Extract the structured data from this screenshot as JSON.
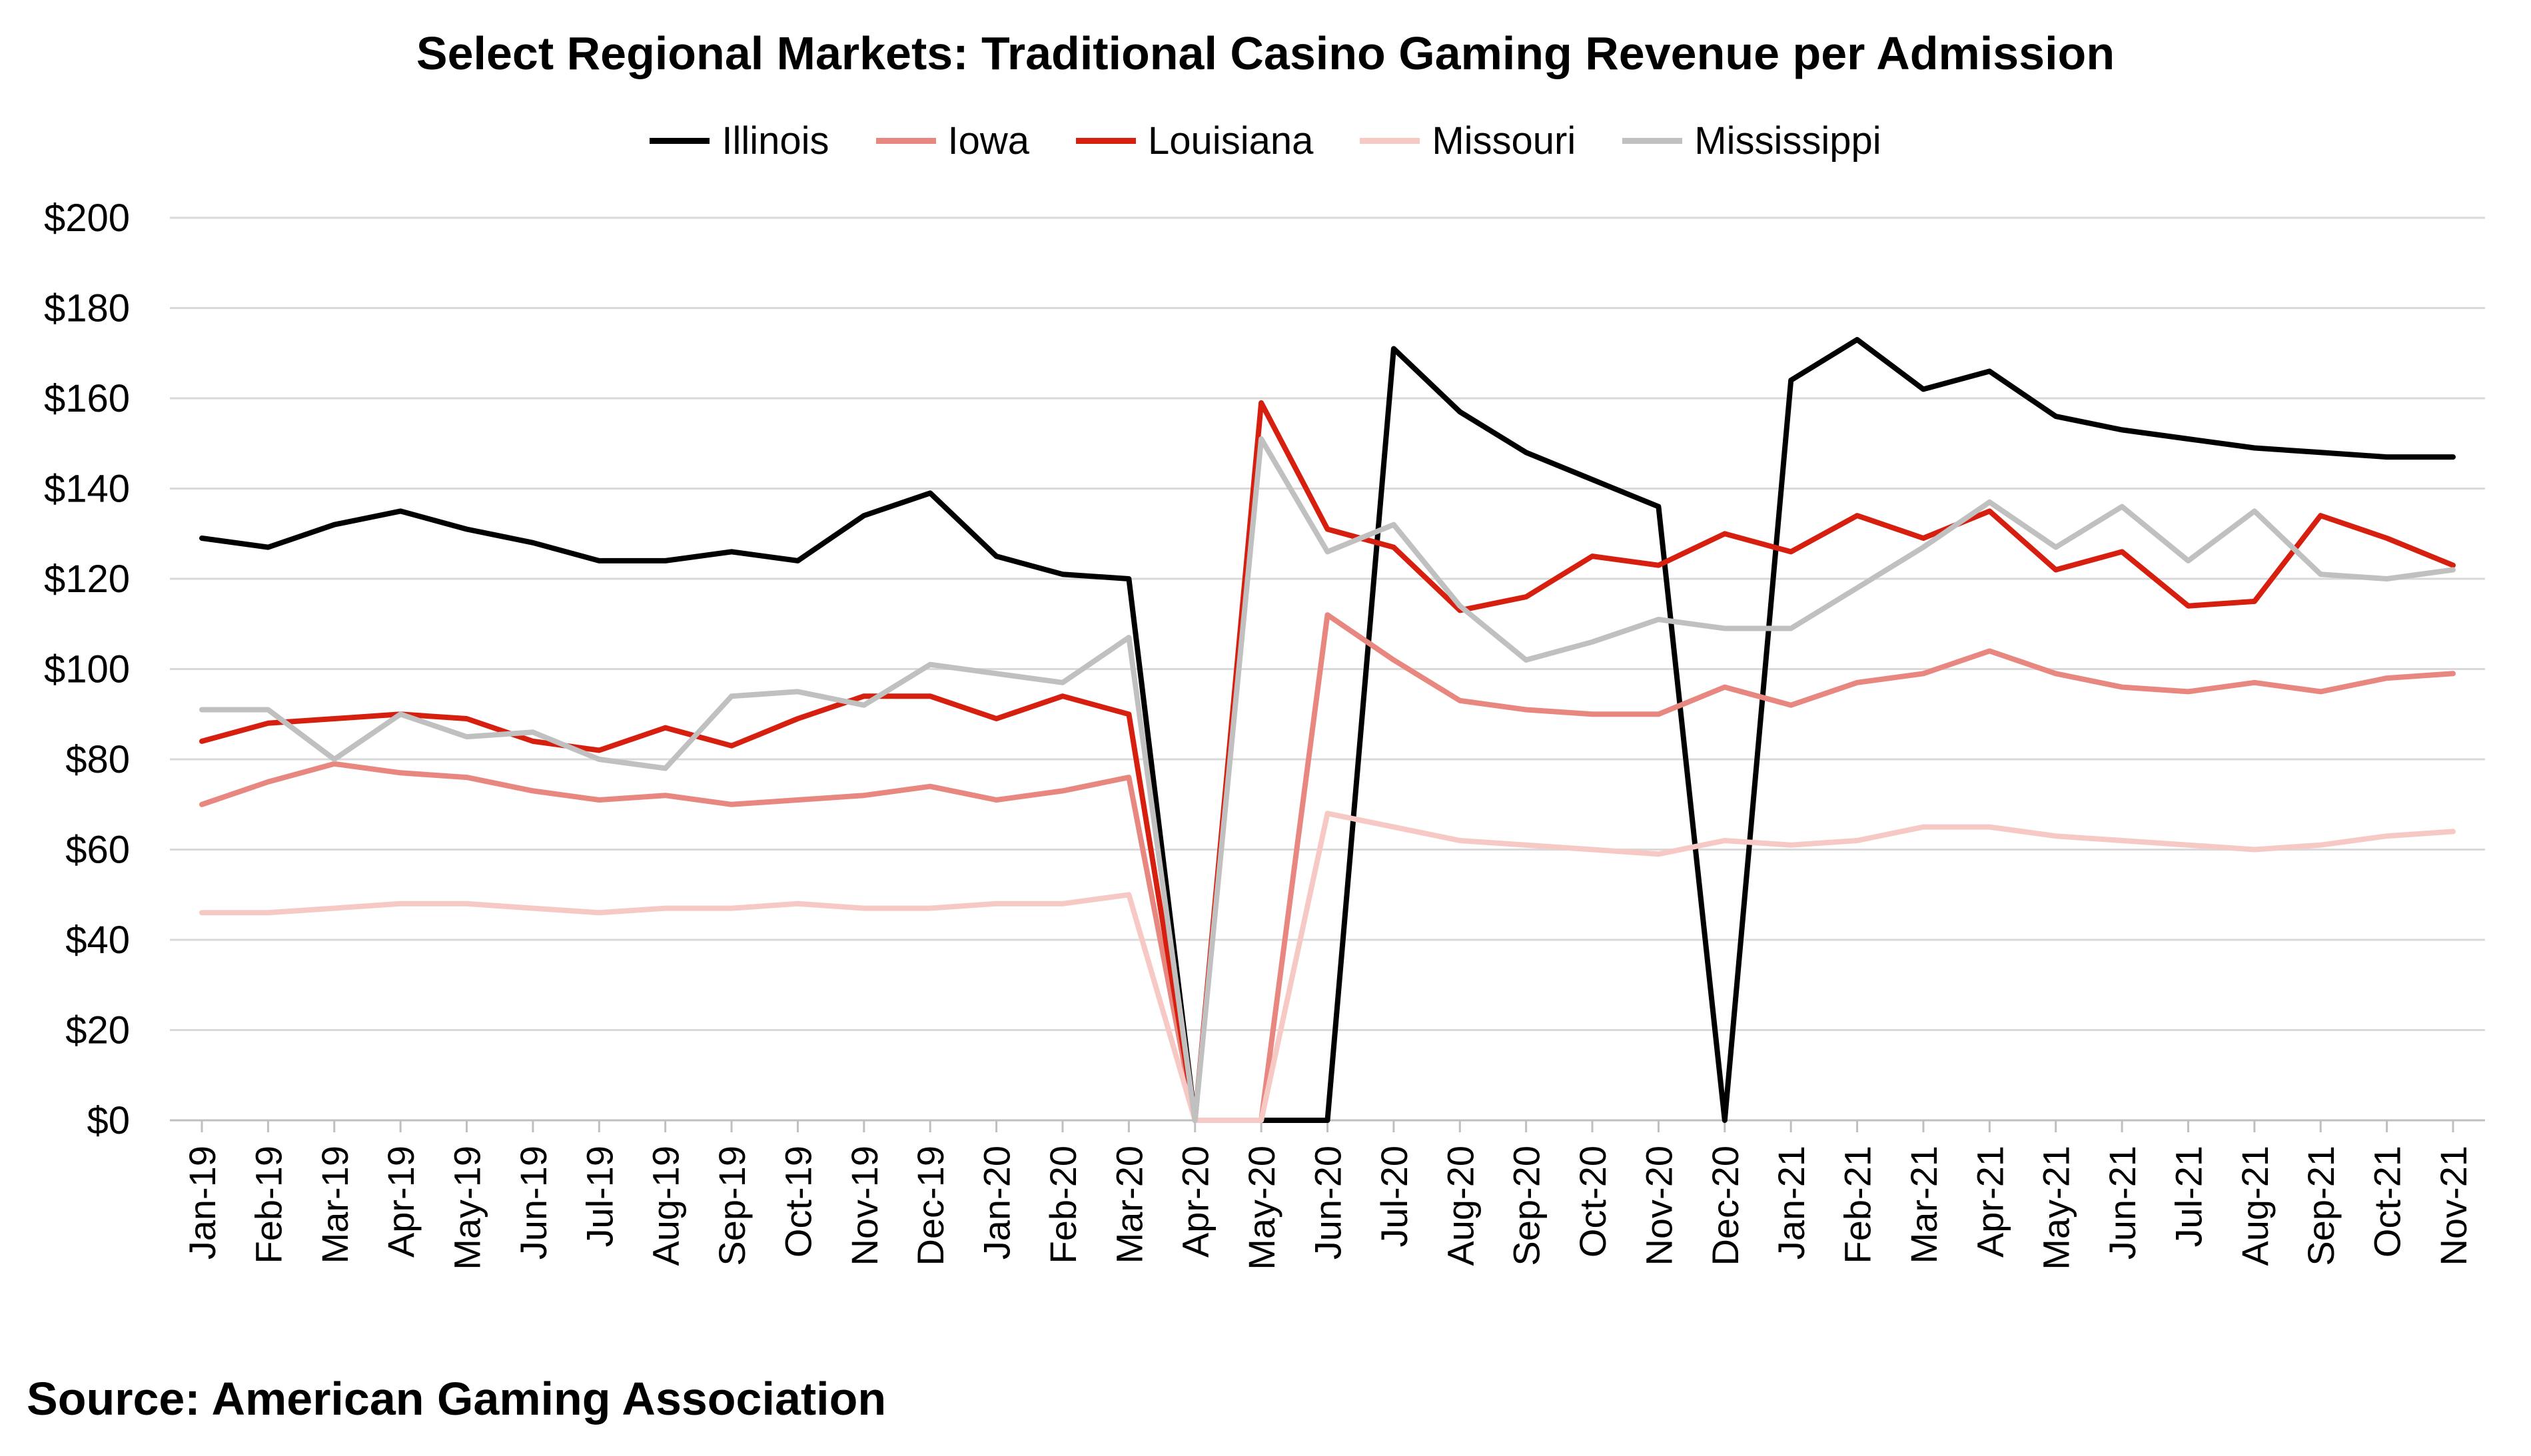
{
  "source": "Source: American Gaming Association",
  "chart_data": {
    "type": "line",
    "title": "Select Regional Markets: Traditional Casino Gaming Revenue per Admission",
    "legend_position": "top",
    "grid": true,
    "ylim": [
      0,
      200
    ],
    "y_ticks": [
      0,
      20,
      40,
      60,
      80,
      100,
      120,
      140,
      160,
      180,
      200
    ],
    "y_tick_labels": [
      "$0",
      "$20",
      "$40",
      "$60",
      "$80",
      "$100",
      "$120",
      "$140",
      "$160",
      "$180",
      "$200"
    ],
    "categories": [
      "Jan-19",
      "Feb-19",
      "Mar-19",
      "Apr-19",
      "May-19",
      "Jun-19",
      "Jul-19",
      "Aug-19",
      "Sep-19",
      "Oct-19",
      "Nov-19",
      "Dec-19",
      "Jan-20",
      "Feb-20",
      "Mar-20",
      "Apr-20",
      "May-20",
      "Jun-20",
      "Jul-20",
      "Aug-20",
      "Sep-20",
      "Oct-20",
      "Nov-20",
      "Dec-20",
      "Jan-21",
      "Feb-21",
      "Mar-21",
      "Apr-21",
      "May-21",
      "Jun-21",
      "Jul-21",
      "Aug-21",
      "Sep-21",
      "Oct-21",
      "Nov-21"
    ],
    "series": [
      {
        "name": "Illinois",
        "color": "#000000",
        "values": [
          129,
          127,
          132,
          135,
          131,
          128,
          124,
          124,
          126,
          124,
          134,
          139,
          125,
          121,
          120,
          0,
          0,
          0,
          171,
          157,
          148,
          142,
          136,
          0,
          164,
          173,
          162,
          166,
          156,
          153,
          151,
          149,
          148,
          147,
          147
        ]
      },
      {
        "name": "Iowa",
        "color": "#e8877f",
        "values": [
          70,
          75,
          79,
          77,
          76,
          73,
          71,
          72,
          70,
          71,
          72,
          74,
          71,
          73,
          76,
          0,
          0,
          112,
          102,
          93,
          91,
          90,
          90,
          96,
          92,
          97,
          99,
          104,
          99,
          96,
          95,
          97,
          95,
          98,
          99
        ]
      },
      {
        "name": "Louisiana",
        "color": "#d71f0f",
        "values": [
          84,
          88,
          89,
          90,
          89,
          84,
          82,
          87,
          83,
          89,
          94,
          94,
          89,
          94,
          90,
          0,
          159,
          131,
          127,
          113,
          116,
          125,
          123,
          130,
          126,
          134,
          129,
          135,
          122,
          126,
          114,
          115,
          134,
          129,
          123
        ]
      },
      {
        "name": "Missouri",
        "color": "#f7c9c4",
        "values": [
          46,
          46,
          47,
          48,
          48,
          47,
          46,
          47,
          47,
          48,
          47,
          47,
          48,
          48,
          50,
          0,
          0,
          68,
          65,
          62,
          61,
          60,
          59,
          62,
          61,
          62,
          65,
          65,
          63,
          62,
          61,
          60,
          61,
          63,
          64
        ]
      },
      {
        "name": "Mississippi",
        "color": "#c0c0c0",
        "values": [
          91,
          91,
          80,
          90,
          85,
          86,
          80,
          78,
          94,
          95,
          92,
          101,
          99,
          97,
          107,
          0,
          151,
          126,
          132,
          114,
          102,
          106,
          111,
          109,
          109,
          118,
          127,
          137,
          127,
          136,
          124,
          135,
          121,
          120,
          122
        ]
      }
    ]
  }
}
